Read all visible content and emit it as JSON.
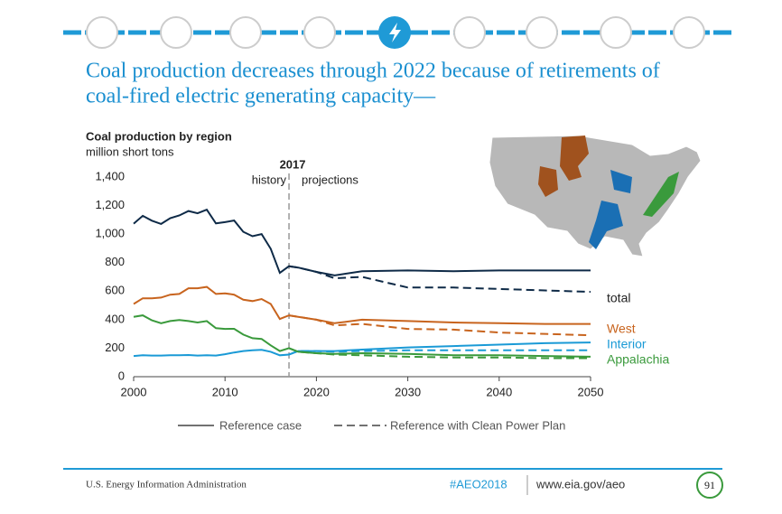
{
  "header": {
    "title_line_1": "Coal production decreases through 2022 because of retirements of",
    "title_line_2": "coal-fired electric generating capacity—"
  },
  "chart_data": {
    "type": "line",
    "title": "Coal production by region",
    "subtitle": "million short tons",
    "x": [
      2000,
      2001,
      2002,
      2003,
      2004,
      2005,
      2006,
      2007,
      2008,
      2009,
      2010,
      2011,
      2012,
      2013,
      2014,
      2015,
      2016,
      2017,
      2018,
      2020,
      2022,
      2025,
      2030,
      2035,
      2040,
      2045,
      2050
    ],
    "series": [
      {
        "name": "total",
        "color": "#0e2a47",
        "values": [
          1073,
          1128,
          1094,
          1071,
          1112,
          1131,
          1162,
          1146,
          1171,
          1075,
          1084,
          1095,
          1016,
          985,
          1000,
          897,
          728,
          775,
          765,
          735,
          710,
          740,
          745,
          740,
          745,
          745,
          745
        ],
        "clean_power_plan_values": [
          null,
          null,
          null,
          null,
          null,
          null,
          null,
          null,
          null,
          null,
          null,
          null,
          null,
          null,
          null,
          null,
          null,
          775,
          765,
          735,
          690,
          700,
          625,
          625,
          615,
          605,
          595
        ]
      },
      {
        "name": "West",
        "color": "#c8641e",
        "values": [
          510,
          550,
          550,
          555,
          575,
          580,
          620,
          620,
          630,
          580,
          585,
          575,
          540,
          530,
          545,
          510,
          405,
          430,
          420,
          400,
          375,
          400,
          390,
          380,
          375,
          370,
          370
        ],
        "clean_power_plan_values": [
          null,
          null,
          null,
          null,
          null,
          null,
          null,
          null,
          null,
          null,
          null,
          null,
          null,
          null,
          null,
          null,
          null,
          430,
          420,
          400,
          360,
          370,
          335,
          330,
          310,
          300,
          290
        ]
      },
      {
        "name": "Interior",
        "color": "#1a9ad6",
        "values": [
          145,
          150,
          148,
          148,
          150,
          150,
          152,
          148,
          150,
          148,
          158,
          170,
          180,
          185,
          188,
          175,
          150,
          155,
          180,
          180,
          180,
          190,
          205,
          215,
          225,
          235,
          240
        ],
        "clean_power_plan_values": [
          null,
          null,
          null,
          null,
          null,
          null,
          null,
          null,
          null,
          null,
          null,
          null,
          null,
          null,
          null,
          null,
          null,
          155,
          180,
          180,
          175,
          180,
          185,
          185,
          185,
          185,
          185
        ]
      },
      {
        "name": "Appalachia",
        "color": "#3a9a3c",
        "values": [
          420,
          430,
          395,
          375,
          390,
          397,
          390,
          380,
          390,
          340,
          335,
          336,
          295,
          270,
          265,
          220,
          180,
          200,
          175,
          165,
          160,
          165,
          160,
          150,
          150,
          145,
          140
        ],
        "clean_power_plan_values": [
          null,
          null,
          null,
          null,
          null,
          null,
          null,
          null,
          null,
          null,
          null,
          null,
          null,
          null,
          null,
          null,
          null,
          200,
          175,
          165,
          155,
          150,
          140,
          135,
          135,
          130,
          130
        ]
      }
    ],
    "xlim": [
      2000,
      2050
    ],
    "xticks": [
      2000,
      2010,
      2020,
      2030,
      2040,
      2050
    ],
    "ylim": [
      0,
      1400
    ],
    "yticks": [
      0,
      200,
      400,
      600,
      800,
      {
        "value": 1000,
        "label": "1,000"
      },
      {
        "value": 1200,
        "label": "1,200"
      },
      {
        "value": 1400,
        "label": "1,400"
      }
    ],
    "divider": {
      "x": 2017,
      "left_label": "history",
      "right_label": "projections"
    },
    "line_styles": [
      {
        "label": "Reference case",
        "dash": "solid"
      },
      {
        "label": "Reference with Clean Power Plan",
        "dash": "dashed"
      }
    ]
  },
  "footer": {
    "source": "U.S. Energy Information Administration",
    "hashtag": "#AEO2018",
    "url": "www.eia.gov/aeo",
    "page": "91"
  }
}
